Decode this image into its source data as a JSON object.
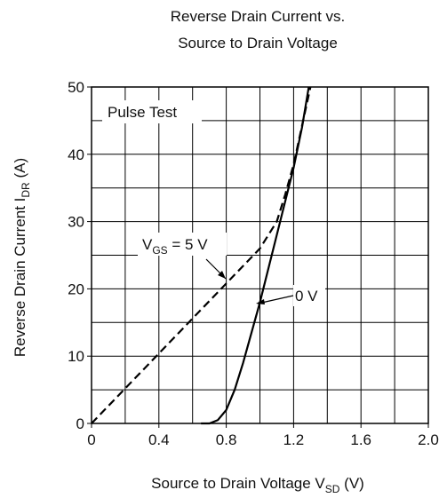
{
  "chart_data": {
    "type": "line",
    "title": [
      "Reverse Drain Current vs.",
      "Source to Drain Voltage"
    ],
    "x_label": {
      "text": "Source to Drain Voltage  V",
      "sub": "SD",
      "tail": "  (V)"
    },
    "y_label": {
      "text": "Reverse Drain Current  I",
      "sub": "DR",
      "tail": "  (A)"
    },
    "xlim": [
      0,
      2
    ],
    "ylim": [
      0,
      50
    ],
    "xticks": [
      0,
      0.4,
      0.8,
      1.2,
      1.6,
      {
        "value": 2,
        "label": "2.0"
      }
    ],
    "yticks": [
      0,
      10,
      20,
      30,
      40,
      50
    ],
    "xgrid": [
      0.2,
      0.4,
      0.6,
      0.8,
      1,
      1.2,
      1.4,
      1.6,
      1.8
    ],
    "ygrid": [
      5,
      10,
      15,
      20,
      25,
      30,
      35,
      40,
      45
    ],
    "annotations": [
      "Pulse Test"
    ],
    "series": [
      {
        "name": {
          "text": "V",
          "sub": "GS",
          "tail": " = 5 V"
        },
        "color": "#000000",
        "dashed": true,
        "x": [
          0,
          0.2,
          0.4,
          0.6,
          0.8,
          0.9,
          1.0,
          1.1,
          1.15,
          1.2,
          1.3
        ],
        "values": [
          0,
          5.2,
          10.4,
          15.6,
          20.8,
          23.4,
          26,
          30,
          34,
          38.5,
          50
        ]
      },
      {
        "name": "0 V",
        "color": "#000000",
        "dashed": false,
        "x": [
          0.65,
          0.7,
          0.75,
          0.8,
          0.85,
          0.9,
          0.95,
          1.0,
          1.05,
          1.1,
          1.15,
          1.2,
          1.25,
          1.29
        ],
        "values": [
          0,
          0,
          0.5,
          2,
          5,
          9,
          13.5,
          18,
          23,
          28,
          33,
          38,
          44,
          50
        ]
      }
    ]
  }
}
